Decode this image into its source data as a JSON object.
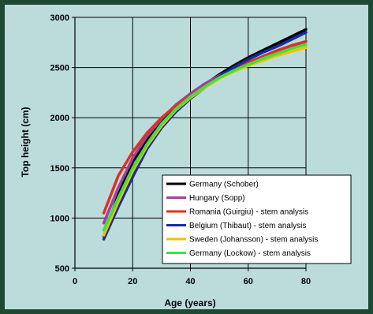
{
  "chart_data": {
    "type": "line",
    "title": "",
    "xlabel": "Age (years)",
    "ylabel": "Top height (cm)",
    "xlim": [
      0,
      80
    ],
    "ylim": [
      500,
      3000
    ],
    "x_ticks": [
      0,
      20,
      40,
      60,
      80
    ],
    "y_ticks": [
      500,
      1000,
      1500,
      2000,
      2500,
      3000
    ],
    "grid": true,
    "legend_position": "bottom-right",
    "background_color": "#bcdcdc",
    "series": [
      {
        "name": "Germany (Schober)",
        "color": "#000000",
        "x": [
          10,
          15,
          20,
          25,
          30,
          35,
          40,
          45,
          50,
          55,
          60,
          65,
          70,
          75,
          80
        ],
        "y": [
          820,
          1230,
          1560,
          1780,
          1960,
          2110,
          2230,
          2330,
          2430,
          2520,
          2600,
          2670,
          2740,
          2810,
          2880
        ]
      },
      {
        "name": "Hungary (Sopp)",
        "color": "#a040a0",
        "x": [
          10,
          15,
          20,
          25,
          30,
          35,
          40,
          45,
          50,
          55,
          60,
          65,
          70,
          75,
          80
        ],
        "y": [
          950,
          1300,
          1600,
          1820,
          1990,
          2130,
          2240,
          2340,
          2420,
          2490,
          2550,
          2610,
          2660,
          2710,
          2760
        ]
      },
      {
        "name": "Romania (Guirgiu) - stem analysis",
        "color": "#e03020",
        "x": [
          10,
          15,
          20,
          25,
          30,
          35,
          40,
          45,
          50,
          55,
          60,
          65,
          70,
          75,
          80
        ],
        "y": [
          1050,
          1420,
          1660,
          1850,
          2000,
          2120,
          2220,
          2310,
          2400,
          2480,
          2550,
          2610,
          2670,
          2720,
          2760
        ]
      },
      {
        "name": "Belgium (Thibaut) - stem analysis",
        "color": "#1a2aa0",
        "x": [
          10,
          15,
          20,
          25,
          30,
          35,
          40,
          45,
          50,
          55,
          60,
          65,
          70,
          75,
          80
        ],
        "y": [
          790,
          1110,
          1410,
          1690,
          1900,
          2060,
          2190,
          2300,
          2410,
          2500,
          2580,
          2650,
          2710,
          2780,
          2850
        ]
      },
      {
        "name": "Sweden (Johansson) - stem analysis",
        "color": "#f0c000",
        "x": [
          10,
          15,
          20,
          25,
          30,
          35,
          40,
          45,
          50,
          55,
          60,
          65,
          70,
          75,
          80
        ],
        "y": [
          830,
          1160,
          1470,
          1720,
          1920,
          2080,
          2200,
          2300,
          2390,
          2460,
          2520,
          2570,
          2620,
          2660,
          2700
        ]
      },
      {
        "name": "Germany (Lockow) - stem analysis",
        "color": "#40e040",
        "x": [
          10,
          15,
          20,
          25,
          30,
          35,
          40,
          45,
          50,
          55,
          60,
          65,
          70,
          75,
          80
        ],
        "y": [
          880,
          1200,
          1500,
          1740,
          1940,
          2090,
          2210,
          2310,
          2400,
          2470,
          2530,
          2590,
          2640,
          2690,
          2730
        ]
      }
    ]
  }
}
